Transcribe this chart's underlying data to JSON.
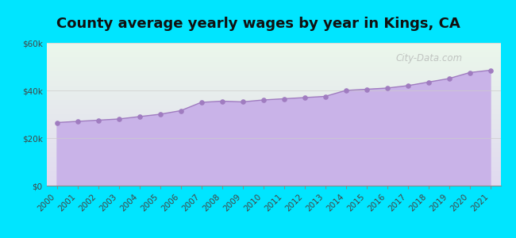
{
  "title": "County average yearly wages by year in Kings, CA",
  "years": [
    2000,
    2001,
    2002,
    2003,
    2004,
    2005,
    2006,
    2007,
    2008,
    2009,
    2010,
    2011,
    2012,
    2013,
    2014,
    2015,
    2016,
    2017,
    2018,
    2019,
    2020,
    2021
  ],
  "wages": [
    26500,
    27000,
    27500,
    28000,
    29000,
    30000,
    31500,
    35000,
    35500,
    35200,
    36000,
    36500,
    37000,
    37500,
    40000,
    40500,
    41000,
    42000,
    43500,
    45000,
    47500,
    48500
  ],
  "fill_color": "#c9b3e8",
  "line_color": "#a07cc0",
  "marker_color": "#a07cc0",
  "background_outer": "#00e5ff",
  "ylim": [
    0,
    60000
  ],
  "yticks": [
    0,
    20000,
    40000,
    60000
  ],
  "ytick_labels": [
    "$0",
    "$20k",
    "$40k",
    "$60k"
  ],
  "watermark": "City-Data.com",
  "title_fontsize": 13,
  "tick_fontsize": 7.5
}
